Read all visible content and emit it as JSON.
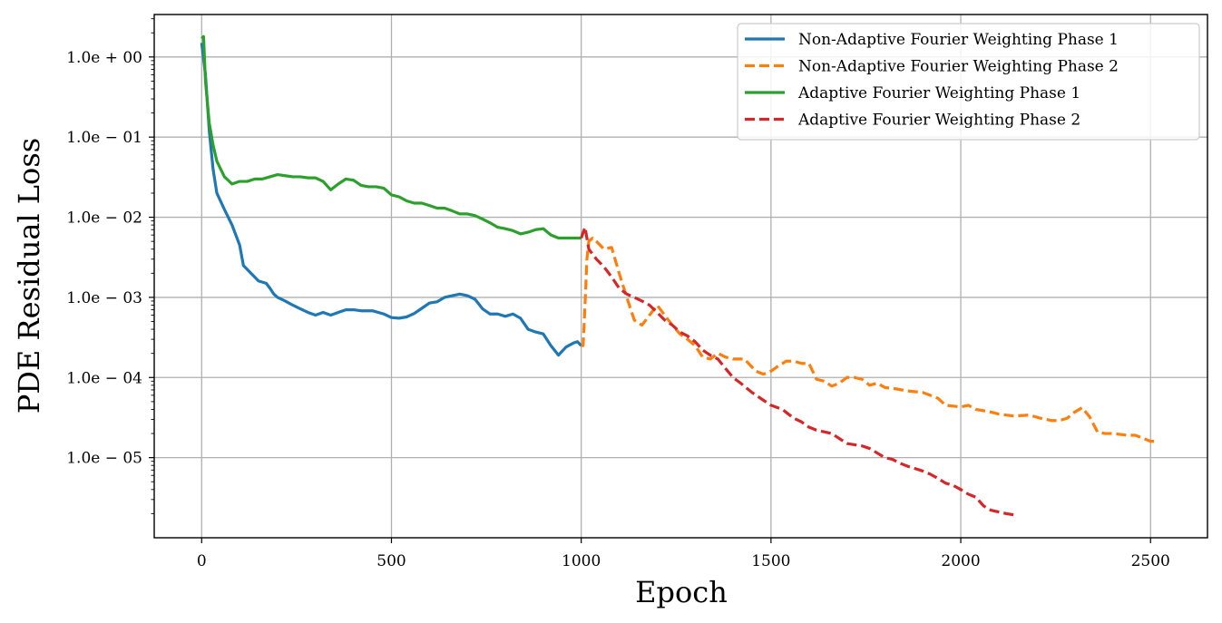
{
  "chart_data": {
    "type": "line",
    "title": "",
    "xlabel": "Epoch",
    "ylabel": "PDE Residual Loss",
    "y_scale": "log",
    "xlim": [
      -125,
      2650
    ],
    "ylim_log10": [
      -6.0,
      0.53
    ],
    "grid": true,
    "legend_location": "top-right",
    "x_ticks": [
      0,
      500,
      1000,
      1500,
      2000,
      2500
    ],
    "x_tick_labels": [
      "0",
      "500",
      "1000",
      "1500",
      "2000",
      "2500"
    ],
    "y_ticks_log10": [
      0,
      -1,
      -2,
      -3,
      -4,
      -5
    ],
    "y_tick_labels": [
      "1.0e + 00",
      "1.0e − 01",
      "1.0e − 02",
      "1.0e − 03",
      "1.0e − 04",
      "1.0e − 05"
    ],
    "series": [
      {
        "name": "Non-Adaptive Fourier Weighting Phase 1",
        "color": "#1f77b4",
        "dash": "solid",
        "points": [
          [
            0,
            1.5
          ],
          [
            10,
            0.6
          ],
          [
            20,
            0.12
          ],
          [
            30,
            0.04
          ],
          [
            40,
            0.02
          ],
          [
            60,
            0.0125
          ],
          [
            80,
            0.008
          ],
          [
            100,
            0.0045
          ],
          [
            110,
            0.0025
          ],
          [
            130,
            0.002
          ],
          [
            150,
            0.0016
          ],
          [
            170,
            0.0015
          ],
          [
            180,
            0.0013
          ],
          [
            190,
            0.0011
          ],
          [
            200,
            0.001
          ],
          [
            220,
            0.0009
          ],
          [
            240,
            0.0008
          ],
          [
            260,
            0.00072
          ],
          [
            280,
            0.00065
          ],
          [
            300,
            0.0006
          ],
          [
            320,
            0.00065
          ],
          [
            340,
            0.0006
          ],
          [
            360,
            0.00065
          ],
          [
            380,
            0.0007
          ],
          [
            400,
            0.0007
          ],
          [
            420,
            0.00068
          ],
          [
            450,
            0.00068
          ],
          [
            480,
            0.00062
          ],
          [
            500,
            0.00056
          ],
          [
            520,
            0.00055
          ],
          [
            540,
            0.00057
          ],
          [
            560,
            0.00063
          ],
          [
            580,
            0.00073
          ],
          [
            600,
            0.00085
          ],
          [
            620,
            0.00088
          ],
          [
            640,
            0.001
          ],
          [
            660,
            0.00105
          ],
          [
            680,
            0.0011
          ],
          [
            700,
            0.00105
          ],
          [
            720,
            0.00095
          ],
          [
            740,
            0.00072
          ],
          [
            760,
            0.00062
          ],
          [
            780,
            0.00062
          ],
          [
            800,
            0.00058
          ],
          [
            820,
            0.00062
          ],
          [
            840,
            0.00055
          ],
          [
            860,
            0.0004
          ],
          [
            880,
            0.00037
          ],
          [
            900,
            0.00035
          ],
          [
            920,
            0.00025
          ],
          [
            940,
            0.00019
          ],
          [
            960,
            0.00024
          ],
          [
            980,
            0.00027
          ],
          [
            990,
            0.00028
          ],
          [
            1000,
            0.00025
          ]
        ]
      },
      {
        "name": "Non-Adaptive Fourier Weighting Phase 2",
        "color": "#ff7f0e",
        "dash": "dashed",
        "points": [
          [
            1000,
            0.00025
          ],
          [
            1005,
            0.00025
          ],
          [
            1010,
            0.0008
          ],
          [
            1015,
            0.003
          ],
          [
            1020,
            0.005
          ],
          [
            1030,
            0.0055
          ],
          [
            1040,
            0.005
          ],
          [
            1060,
            0.004
          ],
          [
            1080,
            0.0042
          ],
          [
            1100,
            0.002
          ],
          [
            1120,
            0.001
          ],
          [
            1140,
            0.00052
          ],
          [
            1160,
            0.00045
          ],
          [
            1180,
            0.0006
          ],
          [
            1200,
            0.0008
          ],
          [
            1220,
            0.0006
          ],
          [
            1240,
            0.00045
          ],
          [
            1260,
            0.00035
          ],
          [
            1280,
            0.0003
          ],
          [
            1300,
            0.00025
          ],
          [
            1320,
            0.00018
          ],
          [
            1340,
            0.00017
          ],
          [
            1360,
            0.0002
          ],
          [
            1380,
            0.00018
          ],
          [
            1400,
            0.00017
          ],
          [
            1430,
            0.00017
          ],
          [
            1460,
            0.00012
          ],
          [
            1480,
            0.00011
          ],
          [
            1500,
            0.00012
          ],
          [
            1520,
            0.00014
          ],
          [
            1540,
            0.00016
          ],
          [
            1560,
            0.00016
          ],
          [
            1580,
            0.00015
          ],
          [
            1600,
            0.00015
          ],
          [
            1620,
            9.5e-05
          ],
          [
            1640,
            9e-05
          ],
          [
            1660,
            7.8e-05
          ],
          [
            1680,
            8.5e-05
          ],
          [
            1700,
            0.0001
          ],
          [
            1720,
            0.0001
          ],
          [
            1740,
            9.5e-05
          ],
          [
            1760,
            8e-05
          ],
          [
            1780,
            8.5e-05
          ],
          [
            1800,
            7.5e-05
          ],
          [
            1830,
            7.2e-05
          ],
          [
            1860,
            6.8e-05
          ],
          [
            1900,
            6.5e-05
          ],
          [
            1940,
            5.5e-05
          ],
          [
            1960,
            4.5e-05
          ],
          [
            2000,
            4.3e-05
          ],
          [
            2020,
            4.5e-05
          ],
          [
            2040,
            4e-05
          ],
          [
            2080,
            3.7e-05
          ],
          [
            2100,
            3.5e-05
          ],
          [
            2140,
            3.3e-05
          ],
          [
            2180,
            3.4e-05
          ],
          [
            2210,
            3.1e-05
          ],
          [
            2240,
            2.9e-05
          ],
          [
            2260,
            2.9e-05
          ],
          [
            2280,
            3.1e-05
          ],
          [
            2300,
            3.7e-05
          ],
          [
            2320,
            4.2e-05
          ],
          [
            2340,
            3.2e-05
          ],
          [
            2360,
            2.1e-05
          ],
          [
            2380,
            2e-05
          ],
          [
            2400,
            2e-05
          ],
          [
            2440,
            1.9e-05
          ],
          [
            2460,
            1.9e-05
          ],
          [
            2500,
            1.6e-05
          ],
          [
            2520,
            1.6e-05
          ]
        ]
      },
      {
        "name": "Adaptive Fourier Weighting Phase 1",
        "color": "#2ca02c",
        "dash": "solid",
        "points": [
          [
            0,
            1.7
          ],
          [
            5,
            1.8
          ],
          [
            10,
            0.5
          ],
          [
            20,
            0.15
          ],
          [
            30,
            0.08
          ],
          [
            40,
            0.05
          ],
          [
            60,
            0.032
          ],
          [
            80,
            0.026
          ],
          [
            100,
            0.028
          ],
          [
            120,
            0.028
          ],
          [
            140,
            0.03
          ],
          [
            160,
            0.03
          ],
          [
            180,
            0.032
          ],
          [
            200,
            0.034
          ],
          [
            220,
            0.033
          ],
          [
            240,
            0.032
          ],
          [
            260,
            0.032
          ],
          [
            280,
            0.031
          ],
          [
            300,
            0.031
          ],
          [
            320,
            0.028
          ],
          [
            340,
            0.022
          ],
          [
            360,
            0.026
          ],
          [
            380,
            0.03
          ],
          [
            400,
            0.029
          ],
          [
            420,
            0.025
          ],
          [
            440,
            0.024
          ],
          [
            460,
            0.024
          ],
          [
            480,
            0.023
          ],
          [
            500,
            0.019
          ],
          [
            520,
            0.018
          ],
          [
            540,
            0.016
          ],
          [
            560,
            0.015
          ],
          [
            580,
            0.015
          ],
          [
            600,
            0.014
          ],
          [
            620,
            0.013
          ],
          [
            640,
            0.013
          ],
          [
            660,
            0.012
          ],
          [
            680,
            0.011
          ],
          [
            700,
            0.011
          ],
          [
            720,
            0.0105
          ],
          [
            740,
            0.0095
          ],
          [
            760,
            0.0085
          ],
          [
            780,
            0.0075
          ],
          [
            800,
            0.0072
          ],
          [
            820,
            0.0068
          ],
          [
            840,
            0.0062
          ],
          [
            860,
            0.0065
          ],
          [
            880,
            0.007
          ],
          [
            900,
            0.0072
          ],
          [
            920,
            0.006
          ],
          [
            940,
            0.0055
          ],
          [
            960,
            0.0055
          ],
          [
            980,
            0.0055
          ],
          [
            1000,
            0.0055
          ]
        ]
      },
      {
        "name": "Adaptive Fourier Weighting Phase 2",
        "color": "#d62728",
        "dash": "dashed",
        "points": [
          [
            1000,
            0.0055
          ],
          [
            1010,
            0.0075
          ],
          [
            1020,
            0.004
          ],
          [
            1040,
            0.003
          ],
          [
            1060,
            0.0024
          ],
          [
            1080,
            0.0018
          ],
          [
            1100,
            0.0013
          ],
          [
            1120,
            0.0011
          ],
          [
            1140,
            0.001
          ],
          [
            1160,
            0.0009
          ],
          [
            1180,
            0.0008
          ],
          [
            1200,
            0.00065
          ],
          [
            1220,
            0.00052
          ],
          [
            1240,
            0.00045
          ],
          [
            1260,
            0.00037
          ],
          [
            1280,
            0.00033
          ],
          [
            1300,
            0.00028
          ],
          [
            1320,
            0.00022
          ],
          [
            1340,
            0.00019
          ],
          [
            1360,
            0.00017
          ],
          [
            1380,
            0.00013
          ],
          [
            1400,
            0.0001
          ],
          [
            1420,
            8.5e-05
          ],
          [
            1450,
            6.5e-05
          ],
          [
            1480,
            5.2e-05
          ],
          [
            1500,
            4.5e-05
          ],
          [
            1530,
            4e-05
          ],
          [
            1560,
            3.1e-05
          ],
          [
            1580,
            2.8e-05
          ],
          [
            1600,
            2.4e-05
          ],
          [
            1620,
            2.2e-05
          ],
          [
            1660,
            2e-05
          ],
          [
            1700,
            1.5e-05
          ],
          [
            1740,
            1.4e-05
          ],
          [
            1760,
            1.3e-05
          ],
          [
            1800,
            1e-05
          ],
          [
            1820,
            9.5e-06
          ],
          [
            1840,
            8.5e-06
          ],
          [
            1860,
            7.8e-06
          ],
          [
            1880,
            7.3e-06
          ],
          [
            1900,
            6.8e-06
          ],
          [
            1920,
            6.2e-06
          ],
          [
            1940,
            5.5e-06
          ],
          [
            1960,
            4.8e-06
          ],
          [
            1980,
            4.5e-06
          ],
          [
            2000,
            4e-06
          ],
          [
            2020,
            3.5e-06
          ],
          [
            2040,
            3.2e-06
          ],
          [
            2060,
            2.5e-06
          ],
          [
            2080,
            2.2e-06
          ],
          [
            2100,
            2.1e-06
          ],
          [
            2120,
            2e-06
          ],
          [
            2150,
            1.9e-06
          ]
        ]
      }
    ]
  }
}
